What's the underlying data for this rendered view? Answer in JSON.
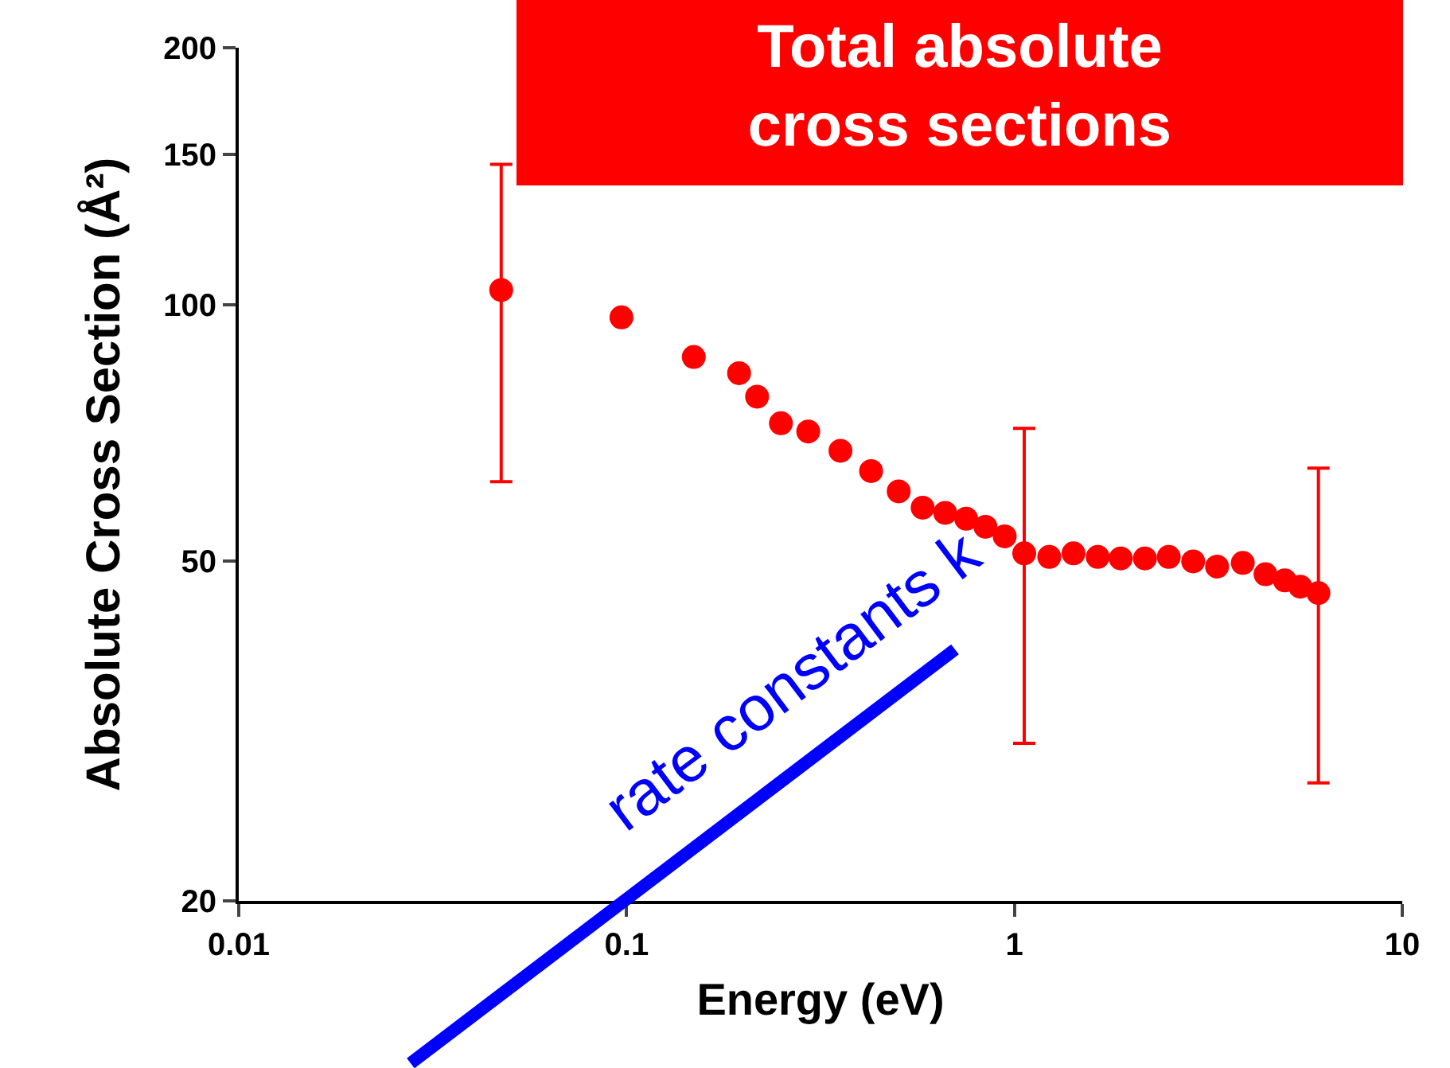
{
  "chart_data": {
    "type": "scatter",
    "title": "Total absolute cross sections",
    "xlabel": "Energy (eV)",
    "ylabel": "Absolute Cross Section (Å²)",
    "annotations": [
      "rate constants k"
    ],
    "log": "xy",
    "xlim": [
      0.01,
      10
    ],
    "xticks": [
      0.01,
      0.1,
      1,
      10
    ],
    "ylim": [
      20,
      200
    ],
    "yticks": [
      20,
      50,
      100,
      150,
      200
    ],
    "marker": "circle",
    "series": [
      {
        "color": "#ff0000",
        "x": [
          0.0475,
          0.097,
          0.149,
          0.195,
          0.217,
          0.25,
          0.294,
          0.356,
          0.427,
          0.503,
          0.58,
          0.663,
          0.751,
          0.842,
          0.944,
          1.06,
          1.23,
          1.42,
          1.64,
          1.88,
          2.17,
          2.5,
          2.89,
          3.33,
          3.88,
          4.44,
          4.98,
          5.46,
          6.08
        ],
        "values": [
          104,
          96.6,
          86.8,
          83.1,
          78,
          72.6,
          71,
          67.4,
          63.8,
          60.4,
          57.8,
          57,
          56.1,
          54.9,
          53.5,
          51.1,
          50.6,
          51.1,
          50.6,
          50.4,
          50.4,
          50.6,
          50,
          49.3,
          49.8,
          48.3,
          47.5,
          46.7,
          45.9
        ],
        "errors": [
          42,
          null,
          null,
          null,
          null,
          null,
          null,
          null,
          null,
          null,
          null,
          null,
          null,
          null,
          null,
          20.5,
          null,
          null,
          null,
          null,
          null,
          null,
          null,
          null,
          null,
          null,
          null,
          null,
          18.4
        ]
      }
    ]
  }
}
